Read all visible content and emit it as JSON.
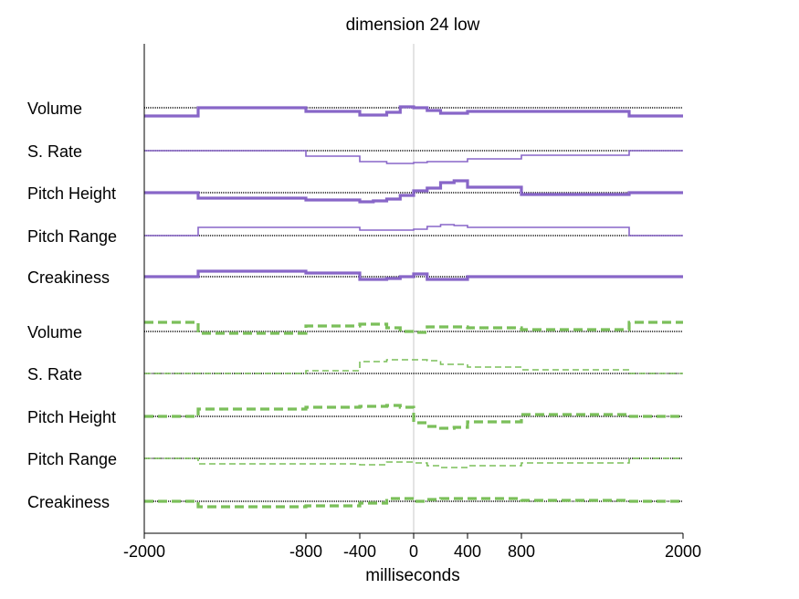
{
  "chart_data": {
    "type": "line",
    "title": "dimension 24 low",
    "xlabel": "milliseconds",
    "ylabel": "",
    "xlim": [
      -2000,
      2000
    ],
    "x_ticks": [
      {
        "value": -2000,
        "label": "-2000"
      },
      {
        "value": -800,
        "label": "-800"
      },
      {
        "value": -400,
        "label": "-400"
      },
      {
        "value": 0,
        "label": "0"
      },
      {
        "value": 400,
        "label": "400"
      },
      {
        "value": 800,
        "label": "800"
      },
      {
        "value": 2000,
        "label": "2000"
      }
    ],
    "bin_edges": [
      -2000,
      -1600,
      -800,
      -400,
      -300,
      -200,
      -100,
      0,
      100,
      200,
      300,
      400,
      800,
      1600,
      2000
    ],
    "colors": {
      "purple": "#8866c8",
      "green": "#7bbf5a",
      "baseline": "#111111",
      "zero_line": "#c8c8c8",
      "axis": "#000000"
    },
    "rows": [
      {
        "label": "Volume",
        "group": "purple",
        "style": "thick-solid",
        "values": [
          -0.9,
          0.0,
          -0.4,
          -0.8,
          -0.8,
          -0.5,
          0.1,
          0.0,
          -0.3,
          -0.6,
          -0.6,
          -0.4,
          -0.4,
          -0.9
        ]
      },
      {
        "label": "S. Rate",
        "group": "purple",
        "style": "thin-solid",
        "values": [
          0.0,
          0.0,
          -0.6,
          -1.2,
          -1.2,
          -1.4,
          -1.4,
          -1.3,
          -1.2,
          -1.2,
          -1.2,
          -0.9,
          -0.5,
          0.0
        ]
      },
      {
        "label": "Pitch Height",
        "group": "purple",
        "style": "thick-solid",
        "values": [
          0.0,
          -0.6,
          -0.8,
          -1.0,
          -0.9,
          -0.7,
          -0.3,
          0.2,
          0.5,
          1.1,
          1.3,
          0.6,
          -0.2,
          0.0
        ]
      },
      {
        "label": "Pitch Range",
        "group": "purple",
        "style": "thin-solid",
        "values": [
          0.0,
          0.9,
          0.9,
          0.6,
          0.6,
          0.6,
          0.6,
          0.7,
          1.0,
          1.2,
          1.1,
          0.9,
          0.9,
          0.0
        ]
      },
      {
        "label": "Creakiness",
        "group": "purple",
        "style": "thick-solid",
        "values": [
          0.0,
          0.6,
          0.4,
          -0.3,
          -0.3,
          -0.2,
          0.0,
          0.3,
          -0.3,
          -0.3,
          -0.3,
          0.0,
          0.0,
          0.0
        ]
      },
      {
        "label": "Volume",
        "group": "green",
        "style": "thick-dashed",
        "values": [
          1.0,
          -0.2,
          0.6,
          0.8,
          0.8,
          0.4,
          0.0,
          -0.1,
          0.5,
          0.5,
          0.5,
          0.4,
          0.2,
          1.0
        ]
      },
      {
        "label": "S. Rate",
        "group": "green",
        "style": "thin-dashed",
        "values": [
          0.0,
          0.0,
          0.3,
          1.3,
          1.3,
          1.5,
          1.5,
          1.5,
          1.4,
          1.0,
          1.0,
          0.7,
          0.4,
          0.0
        ]
      },
      {
        "label": "Pitch Height",
        "group": "green",
        "style": "thick-dashed",
        "values": [
          0.0,
          0.8,
          1.0,
          1.1,
          1.1,
          1.2,
          1.0,
          -0.7,
          -1.1,
          -1.3,
          -1.2,
          -0.6,
          0.2,
          0.0
        ]
      },
      {
        "label": "Pitch Range",
        "group": "green",
        "style": "thin-dashed",
        "values": [
          0.0,
          -0.6,
          -0.6,
          -0.7,
          -0.7,
          -0.4,
          -0.4,
          -0.5,
          -0.8,
          -1.0,
          -1.0,
          -0.8,
          -0.5,
          0.0
        ]
      },
      {
        "label": "Creakiness",
        "group": "green",
        "style": "thick-dashed",
        "values": [
          0.0,
          -0.6,
          -0.5,
          -0.2,
          -0.2,
          0.3,
          0.3,
          0.0,
          0.2,
          0.3,
          0.3,
          0.3,
          0.1,
          0.0
        ]
      }
    ]
  }
}
